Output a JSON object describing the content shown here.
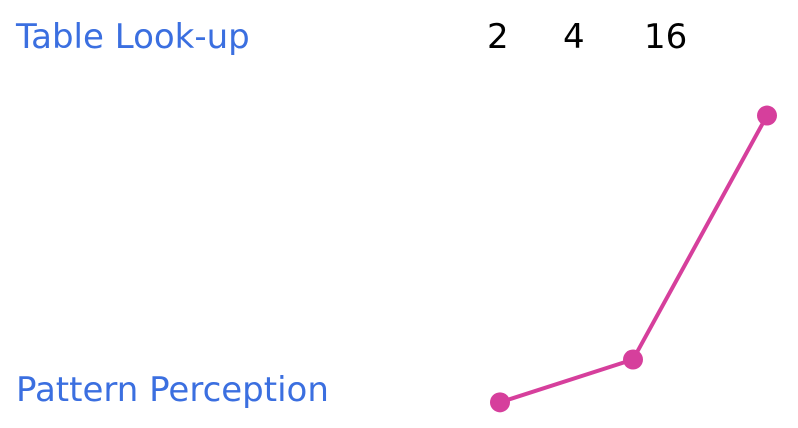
{
  "labels": {
    "table_lookup": "Table Look-up",
    "pattern_perception": "Pattern Perception"
  },
  "numbers": [
    "2",
    "4",
    "16"
  ],
  "chart_data": {
    "type": "line",
    "x": [
      2,
      4,
      16
    ],
    "series": [
      {
        "values": [
          0.06,
          0.16,
          0.73
        ],
        "color": "#d63f9c"
      }
    ],
    "ylim": [
      0,
      1
    ]
  }
}
